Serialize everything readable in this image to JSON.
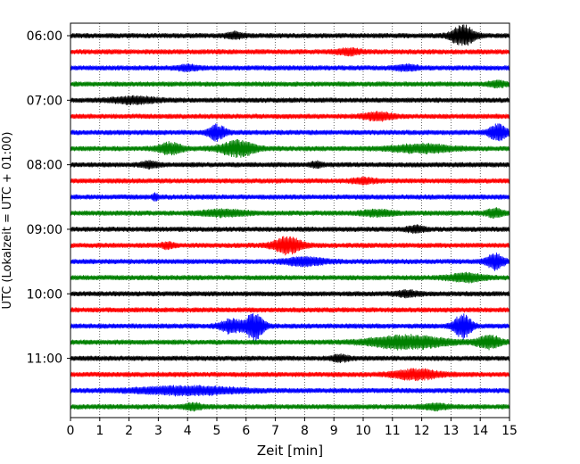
{
  "chart_data": {
    "type": "line",
    "xlabel": "Zeit  [min]",
    "ylabel": "UTC (Lokalzeit = UTC + 01:00)",
    "xlim": [
      0,
      15
    ],
    "x_ticks": [
      "0",
      "1",
      "2",
      "3",
      "4",
      "5",
      "6",
      "7",
      "8",
      "9",
      "10",
      "11",
      "12",
      "13",
      "14",
      "15"
    ],
    "y_tick_labels": [
      "06:00",
      "07:00",
      "08:00",
      "09:00",
      "10:00",
      "11:00"
    ],
    "row_minutes": 15,
    "start_time": "06:00",
    "trace_colors": [
      "#000000",
      "#ff0000",
      "#0000ff",
      "#008000"
    ],
    "grid": "x-dotted",
    "traces": [
      {
        "label": "06:00",
        "color": "#000000",
        "events": [
          {
            "t": 5.6,
            "a": 3,
            "w": 0.3
          },
          {
            "t": 13.4,
            "a": 11,
            "w": 0.4
          }
        ]
      },
      {
        "label": "06:15",
        "color": "#ff0000",
        "events": [
          {
            "t": 9.5,
            "a": 3,
            "w": 0.4
          }
        ]
      },
      {
        "label": "06:30",
        "color": "#0000ff",
        "events": [
          {
            "t": 4.0,
            "a": 2.5,
            "w": 0.4
          },
          {
            "t": 11.5,
            "a": 2.5,
            "w": 0.4
          }
        ]
      },
      {
        "label": "06:45",
        "color": "#008000",
        "events": [
          {
            "t": 14.6,
            "a": 2.5,
            "w": 0.3
          }
        ]
      },
      {
        "label": "07:00",
        "color": "#000000",
        "events": [
          {
            "t": 2.2,
            "a": 3,
            "w": 0.8
          }
        ]
      },
      {
        "label": "07:15",
        "color": "#ff0000",
        "events": [
          {
            "t": 10.5,
            "a": 4,
            "w": 0.5
          }
        ]
      },
      {
        "label": "07:30",
        "color": "#0000ff",
        "events": [
          {
            "t": 5.0,
            "a": 8,
            "w": 0.3
          },
          {
            "t": 14.6,
            "a": 9,
            "w": 0.3
          }
        ]
      },
      {
        "label": "07:45",
        "color": "#008000",
        "events": [
          {
            "t": 3.4,
            "a": 6,
            "w": 0.4
          },
          {
            "t": 5.7,
            "a": 8,
            "w": 0.6
          },
          {
            "t": 12.0,
            "a": 4,
            "w": 1.0
          }
        ]
      },
      {
        "label": "08:00",
        "color": "#000000",
        "events": [
          {
            "t": 2.7,
            "a": 3,
            "w": 0.3
          },
          {
            "t": 8.4,
            "a": 3,
            "w": 0.2
          }
        ]
      },
      {
        "label": "08:15",
        "color": "#ff0000",
        "events": [
          {
            "t": 10.0,
            "a": 2.5,
            "w": 0.4
          }
        ]
      },
      {
        "label": "08:30",
        "color": "#0000ff",
        "events": [
          {
            "t": 2.9,
            "a": 3,
            "w": 0.1
          }
        ]
      },
      {
        "label": "08:45",
        "color": "#008000",
        "events": [
          {
            "t": 5.2,
            "a": 3,
            "w": 0.8
          },
          {
            "t": 10.5,
            "a": 2.5,
            "w": 0.6
          },
          {
            "t": 14.5,
            "a": 4,
            "w": 0.3
          }
        ]
      },
      {
        "label": "09:00",
        "color": "#000000",
        "events": [
          {
            "t": 11.8,
            "a": 3,
            "w": 0.3
          }
        ]
      },
      {
        "label": "09:15",
        "color": "#ff0000",
        "events": [
          {
            "t": 3.3,
            "a": 3,
            "w": 0.2
          },
          {
            "t": 7.4,
            "a": 9,
            "w": 0.5
          }
        ]
      },
      {
        "label": "09:30",
        "color": "#0000ff",
        "events": [
          {
            "t": 8.0,
            "a": 4,
            "w": 0.7
          },
          {
            "t": 14.5,
            "a": 8,
            "w": 0.3
          }
        ]
      },
      {
        "label": "09:45",
        "color": "#008000",
        "events": [
          {
            "t": 13.5,
            "a": 4,
            "w": 0.6
          }
        ]
      },
      {
        "label": "10:00",
        "color": "#000000",
        "events": [
          {
            "t": 11.5,
            "a": 2.5,
            "w": 0.4
          }
        ]
      },
      {
        "label": "10:15",
        "color": "#ff0000",
        "events": []
      },
      {
        "label": "10:30",
        "color": "#0000ff",
        "events": [
          {
            "t": 5.5,
            "a": 7,
            "w": 0.4
          },
          {
            "t": 6.3,
            "a": 16,
            "w": 0.3
          },
          {
            "t": 13.4,
            "a": 13,
            "w": 0.3
          }
        ]
      },
      {
        "label": "10:45",
        "color": "#008000",
        "events": [
          {
            "t": 11.5,
            "a": 7,
            "w": 1.3
          },
          {
            "t": 14.3,
            "a": 7,
            "w": 0.4
          }
        ]
      },
      {
        "label": "11:00",
        "color": "#000000",
        "events": [
          {
            "t": 9.2,
            "a": 3,
            "w": 0.3
          }
        ]
      },
      {
        "label": "11:15",
        "color": "#ff0000",
        "events": [
          {
            "t": 11.8,
            "a": 5,
            "w": 0.8
          }
        ]
      },
      {
        "label": "11:30",
        "color": "#0000ff",
        "events": [
          {
            "t": 4.0,
            "a": 4,
            "w": 1.8
          }
        ]
      },
      {
        "label": "11:45",
        "color": "#008000",
        "events": [
          {
            "t": 4.2,
            "a": 3,
            "w": 0.3
          },
          {
            "t": 12.5,
            "a": 2.5,
            "w": 0.4
          }
        ]
      }
    ]
  }
}
